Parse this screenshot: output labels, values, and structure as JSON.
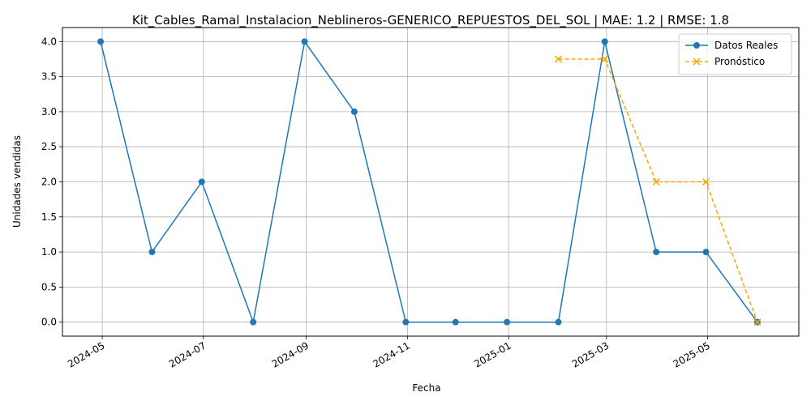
{
  "chart_data": {
    "type": "line",
    "title": "Kit_Cables_Ramal_Instalacion_Neblineros-GENERICO_REPUESTOS_DEL_SOL | MAE: 1.2 | RMSE: 1.8",
    "xlabel": "Fecha",
    "ylabel": "Unidades vendidas",
    "x_ticks": [
      "2024-05",
      "2024-07",
      "2024-09",
      "2024-11",
      "2025-01",
      "2025-03",
      "2025-05"
    ],
    "y_ticks": [
      "0.0",
      "0.5",
      "1.0",
      "1.5",
      "2.0",
      "2.5",
      "3.0",
      "3.5",
      "4.0"
    ],
    "ylim": [
      -0.2,
      4.2
    ],
    "xlim": [
      "2024-04-07",
      "2025-06-25"
    ],
    "grid": true,
    "legend_position": "top-right",
    "series": [
      {
        "name": "Datos Reales",
        "color": "#1f77b4",
        "marker": "circle",
        "linestyle": "solid",
        "points": [
          {
            "x": "2024-04-30",
            "y": 4
          },
          {
            "x": "2024-05-31",
            "y": 1
          },
          {
            "x": "2024-06-30",
            "y": 2
          },
          {
            "x": "2024-07-31",
            "y": 0
          },
          {
            "x": "2024-08-31",
            "y": 4
          },
          {
            "x": "2024-09-30",
            "y": 3
          },
          {
            "x": "2024-10-31",
            "y": 0
          },
          {
            "x": "2024-11-30",
            "y": 0
          },
          {
            "x": "2024-12-31",
            "y": 0
          },
          {
            "x": "2025-01-31",
            "y": 0
          },
          {
            "x": "2025-02-28",
            "y": 4
          },
          {
            "x": "2025-03-31",
            "y": 1
          },
          {
            "x": "2025-04-30",
            "y": 1
          },
          {
            "x": "2025-05-31",
            "y": 0
          }
        ]
      },
      {
        "name": "Pronóstico",
        "color": "#ffa500",
        "marker": "x",
        "linestyle": "dashed",
        "points": [
          {
            "x": "2025-01-31",
            "y": 3.75
          },
          {
            "x": "2025-02-28",
            "y": 3.75
          },
          {
            "x": "2025-03-31",
            "y": 2.0
          },
          {
            "x": "2025-04-30",
            "y": 2.0
          },
          {
            "x": "2025-05-31",
            "y": 0.0
          }
        ]
      }
    ]
  }
}
